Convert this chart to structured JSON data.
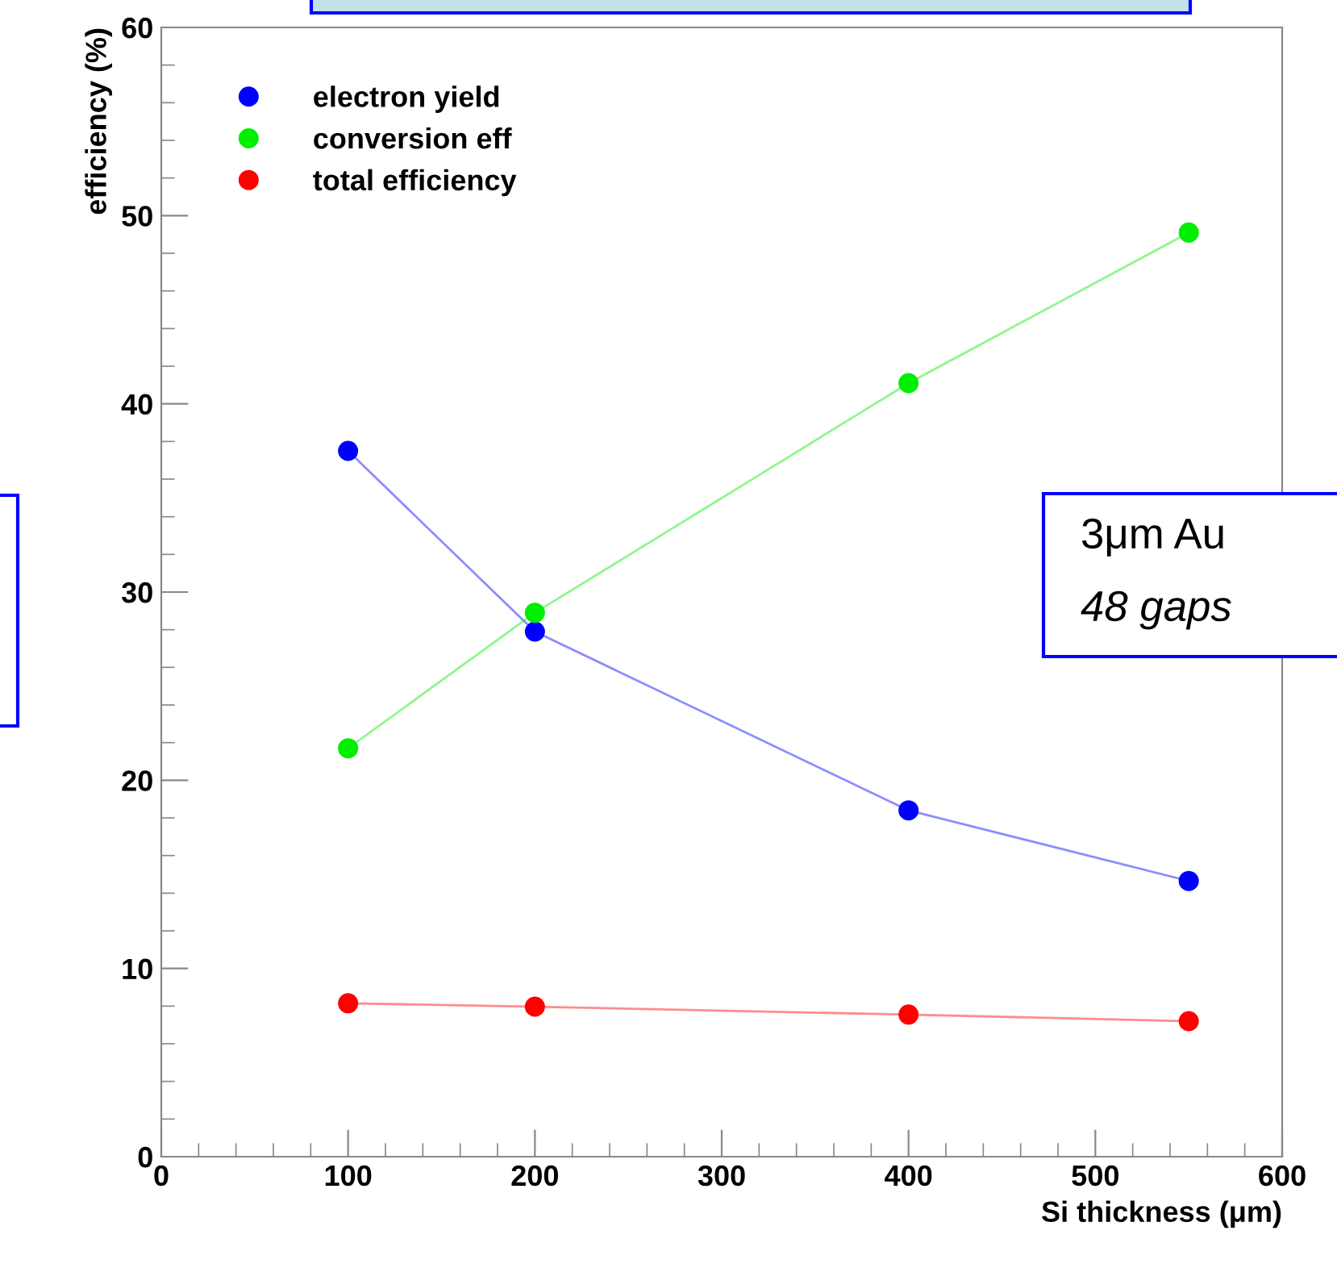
{
  "chart_data": {
    "type": "line",
    "xlabel": "Si thickness (μm)",
    "ylabel": "efficiency (%)",
    "x": [
      100,
      200,
      400,
      550
    ],
    "series": [
      {
        "name": "electron yield",
        "color": "#0000ff",
        "values": [
          37.5,
          27.9,
          18.4,
          14.65
        ]
      },
      {
        "name": "conversion eff",
        "color": "#00ee00",
        "values": [
          21.7,
          28.9,
          41.1,
          49.1
        ]
      },
      {
        "name": "total efficiency",
        "color": "#ff0000",
        "values": [
          8.15,
          7.97,
          7.55,
          7.2
        ]
      }
    ],
    "xlim": [
      0,
      600
    ],
    "xticks": [
      0,
      100,
      200,
      300,
      400,
      500,
      600
    ],
    "ylim": [
      0,
      60
    ],
    "yticks": [
      0,
      10,
      20,
      30,
      40,
      50,
      60
    ],
    "grid": false,
    "legend": "top left",
    "marker": "circle",
    "line_style": "solid",
    "annotations": [
      "3μm Au",
      "48 gaps"
    ]
  }
}
